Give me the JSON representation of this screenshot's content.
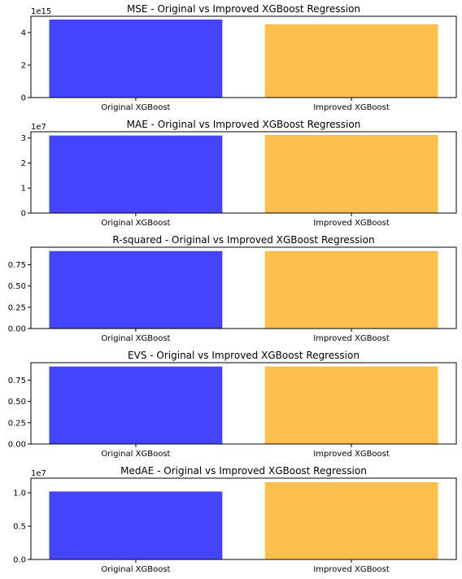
{
  "colors": {
    "original": "#4444ff",
    "improved": "#ffbf4f",
    "axes": "#000000"
  },
  "chart_data": [
    {
      "type": "bar",
      "title": "MSE - Original vs Improved XGBoost Regression",
      "categories": [
        "Original XGBoost",
        "Improved XGBoost"
      ],
      "values": [
        4800000000000000.0,
        4500000000000000.0
      ],
      "ylim": [
        0,
        5000000000000000.0
      ],
      "offset_label": "1e15",
      "scale": 1000000000000000.0,
      "yticks": [
        0,
        2,
        4
      ],
      "ytick_labels": [
        "0",
        "2",
        "4"
      ]
    },
    {
      "type": "bar",
      "title": "MAE - Original vs Improved XGBoost Regression",
      "categories": [
        "Original XGBoost",
        "Improved XGBoost"
      ],
      "values": [
        31000000.0,
        31200000.0
      ],
      "ylim": [
        0,
        32500000.0
      ],
      "offset_label": "1e7",
      "scale": 10000000.0,
      "yticks": [
        0,
        1,
        2,
        3
      ],
      "ytick_labels": [
        "0",
        "1",
        "2",
        "3"
      ]
    },
    {
      "type": "bar",
      "title": "R-squared - Original vs Improved XGBoost Regression",
      "categories": [
        "Original XGBoost",
        "Improved XGBoost"
      ],
      "values": [
        0.91,
        0.91
      ],
      "ylim": [
        0,
        0.955
      ],
      "offset_label": "",
      "scale": 1,
      "yticks": [
        0,
        0.25,
        0.5,
        0.75
      ],
      "ytick_labels": [
        "0.00",
        "0.25",
        "0.50",
        "0.75"
      ]
    },
    {
      "type": "bar",
      "title": "EVS - Original vs Improved XGBoost Regression",
      "categories": [
        "Original XGBoost",
        "Improved XGBoost"
      ],
      "values": [
        0.91,
        0.91
      ],
      "ylim": [
        0,
        0.955
      ],
      "offset_label": "",
      "scale": 1,
      "yticks": [
        0,
        0.25,
        0.5,
        0.75
      ],
      "ytick_labels": [
        "0.00",
        "0.25",
        "0.50",
        "0.75"
      ]
    },
    {
      "type": "bar",
      "title": "MedAE - Original vs Improved XGBoost Regression",
      "categories": [
        "Original XGBoost",
        "Improved XGBoost"
      ],
      "values": [
        10200000.0,
        11600000.0
      ],
      "ylim": [
        0,
        12200000.0
      ],
      "offset_label": "1e7",
      "scale": 10000000.0,
      "yticks": [
        0,
        0.5,
        1.0
      ],
      "ytick_labels": [
        "0.0",
        "0.5",
        "1.0"
      ]
    }
  ]
}
